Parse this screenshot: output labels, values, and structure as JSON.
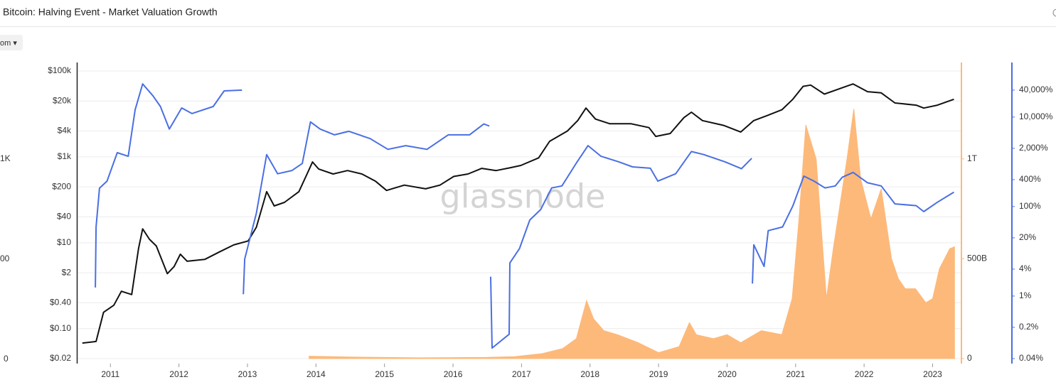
{
  "chart_data": {
    "type": "line",
    "title": "Bitcoin: Halving Event - Market Valuation Growth",
    "zoom_button": "om ▾",
    "offscreen_axis_labels": [
      "1K",
      "00",
      "0"
    ],
    "watermark": "glassnode",
    "xlim": [
      2010.53,
      2023.41
    ],
    "xticks": [
      2011,
      2012,
      2013,
      2014,
      2015,
      2016,
      2017,
      2018,
      2019,
      2020,
      2021,
      2022,
      2023
    ],
    "ylim": [
      0.02,
      100000
    ],
    "ylog": true,
    "yticks": [
      {
        "value": 0.02,
        "label": "$0.02"
      },
      {
        "value": 0.1,
        "label": "$0.10"
      },
      {
        "value": 0.4,
        "label": "$0.40"
      },
      {
        "value": 2,
        "label": "$2"
      },
      {
        "value": 10,
        "label": "$10"
      },
      {
        "value": 40,
        "label": "$40"
      },
      {
        "value": 200,
        "label": "$200"
      },
      {
        "value": 1000,
        "label": "$1k"
      },
      {
        "value": 4000,
        "label": "$4k"
      },
      {
        "value": 20000,
        "label": "$20k"
      },
      {
        "value": 100000,
        "label": "$100k"
      }
    ],
    "y2lim": [
      0,
      1440000000000
    ],
    "y2ticks": [
      0,
      {
        "value": 500000000000,
        "label": "500B"
      },
      {
        "value": 1000000000000,
        "label": "1T"
      }
    ],
    "y2color": "#fdb97a",
    "y3lim": [
      0.04,
      107000
    ],
    "y3log": true,
    "y3ticks": [
      {
        "value": 0.04,
        "label": "0.04%"
      },
      {
        "value": 0.2,
        "label": "0.2%"
      },
      {
        "value": 1,
        "label": "1%"
      },
      {
        "value": 4,
        "label": "4%"
      },
      {
        "value": 20,
        "label": "20%"
      },
      {
        "value": 100,
        "label": "100%"
      },
      {
        "value": 400,
        "label": "400%"
      },
      {
        "value": 2000,
        "label": "2,000%"
      },
      {
        "value": 10000,
        "label": "10,000%"
      },
      {
        "value": 40000,
        "label": "40,000%"
      }
    ],
    "y3color": "#4a6fe3",
    "grid": true,
    "series": [
      {
        "axis": "y2",
        "kind": "area",
        "color": "#fdb97a",
        "x": [
          2013.9,
          2014.5,
          2015.5,
          2016.5,
          2016.9,
          2017.3,
          2017.6,
          2017.8,
          2017.95,
          2018.05,
          2018.2,
          2018.4,
          2018.7,
          2019.0,
          2019.3,
          2019.45,
          2019.55,
          2019.8,
          2020.0,
          2020.2,
          2020.5,
          2020.8,
          2020.95,
          2021.05,
          2021.15,
          2021.3,
          2021.45,
          2021.55,
          2021.75,
          2021.85,
          2021.95,
          2022.1,
          2022.25,
          2022.4,
          2022.5,
          2022.6,
          2022.75,
          2022.9,
          2023.0,
          2023.1,
          2023.25,
          2023.32
        ],
        "values": [
          12000000000,
          8000000000,
          4000000000,
          6000000000,
          10000000000,
          25000000000,
          50000000000,
          100000000000,
          290000000000,
          200000000000,
          140000000000,
          120000000000,
          80000000000,
          30000000000,
          60000000000,
          180000000000,
          120000000000,
          100000000000,
          120000000000,
          80000000000,
          140000000000,
          120000000000,
          300000000000,
          700000000000,
          1170000000000,
          1000000000000,
          300000000000,
          550000000000,
          1000000000000,
          1250000000000,
          900000000000,
          700000000000,
          850000000000,
          500000000000,
          400000000000,
          350000000000,
          350000000000,
          280000000000,
          300000000000,
          450000000000,
          550000000000,
          560000000000
        ]
      },
      {
        "axis": "y",
        "kind": "line",
        "color": "#111111",
        "x": [
          2010.59,
          2010.79,
          2010.9,
          2011.05,
          2011.16,
          2011.31,
          2011.41,
          2011.47,
          2011.57,
          2011.67,
          2011.83,
          2011.93,
          2012.02,
          2012.12,
          2012.38,
          2012.59,
          2012.8,
          2013.01,
          2013.13,
          2013.28,
          2013.39,
          2013.54,
          2013.75,
          2013.87,
          2013.95,
          2014.04,
          2014.25,
          2014.46,
          2014.67,
          2014.87,
          2015.03,
          2015.29,
          2015.6,
          2015.81,
          2016.01,
          2016.22,
          2016.42,
          2016.63,
          2016.84,
          2016.99,
          2017.25,
          2017.41,
          2017.67,
          2017.82,
          2017.94,
          2018.08,
          2018.29,
          2018.6,
          2018.86,
          2018.96,
          2019.17,
          2019.37,
          2019.48,
          2019.64,
          2019.95,
          2020.2,
          2020.39,
          2020.59,
          2020.8,
          2020.96,
          2021.11,
          2021.22,
          2021.42,
          2021.74,
          2021.84,
          2022.05,
          2022.25,
          2022.45,
          2022.76,
          2022.87,
          2023.07,
          2023.31
        ],
        "values": [
          0.046,
          0.05,
          0.24,
          0.35,
          0.74,
          0.62,
          7.3,
          21,
          12,
          8.4,
          1.9,
          2.8,
          5.4,
          3.7,
          4.1,
          6.1,
          8.9,
          11,
          23,
          155,
          72,
          87,
          155,
          400,
          760,
          520,
          400,
          480,
          400,
          270,
          165,
          220,
          180,
          220,
          350,
          400,
          540,
          480,
          560,
          630,
          950,
          2300,
          4000,
          7000,
          13700,
          7600,
          5900,
          5900,
          4800,
          3000,
          3500,
          8200,
          11000,
          7000,
          5400,
          3800,
          7000,
          9200,
          12500,
          22000,
          44000,
          47000,
          29000,
          44000,
          50000,
          33000,
          31000,
          18000,
          16000,
          13700,
          16000,
          22000
        ]
      },
      {
        "axis": "y3",
        "kind": "line",
        "color": "#4a6fe3",
        "x": [
          2010.78,
          2010.79,
          2010.84,
          2010.95,
          2011.1,
          2011.26,
          2011.36,
          2011.47,
          2011.62,
          2011.73,
          2011.86,
          2012.04,
          2012.19,
          2012.5,
          2012.66,
          2012.92,
          2012.93,
          2012.94,
          2012.96,
          2013.13,
          2013.28,
          2013.44,
          2013.65,
          2013.8,
          2013.92,
          2014.06,
          2014.27,
          2014.48,
          2014.79,
          2015.05,
          2015.31,
          2015.62,
          2015.93,
          2016.24,
          2016.45,
          2016.53,
          2016.54,
          2016.55,
          2016.56,
          2016.57,
          2016.82,
          2016.83,
          2016.97,
          2017.12,
          2017.28,
          2017.44,
          2017.59,
          2017.8,
          2017.97,
          2018.16,
          2018.42,
          2018.62,
          2018.88,
          2018.99,
          2019.25,
          2019.48,
          2019.66,
          2019.97,
          2020.21,
          2020.36,
          2020.365,
          2020.37,
          2020.39,
          2020.54,
          2020.6,
          2020.81,
          2020.96,
          2021.12,
          2021.27,
          2021.43,
          2021.58,
          2021.68,
          2021.84,
          2022.05,
          2022.25,
          2022.45,
          2022.76,
          2022.87,
          2023.07,
          2023.31
        ],
        "values": [
          1.55,
          35,
          258,
          370,
          1600,
          1330,
          14500,
          55000,
          30000,
          17200,
          5400,
          16000,
          12000,
          17200,
          38500,
          40000,
          null,
          1.1,
          6.7,
          71,
          1450,
          540,
          640,
          920,
          7800,
          5400,
          4000,
          4800,
          3300,
          1900,
          2300,
          1900,
          4000,
          4000,
          7000,
          6300,
          null,
          2.7,
          0.43,
          0.069,
          0.14,
          5.5,
          11.5,
          50,
          86,
          260,
          290,
          940,
          2300,
          1330,
          1000,
          770,
          720,
          370,
          540,
          1700,
          1450,
          1000,
          700,
          1200,
          null,
          1.9,
          14,
          4.6,
          29,
          35,
          103,
          480,
          370,
          260,
          290,
          450,
          580,
          340,
          290,
          115,
          105,
          77,
          125,
          210
        ]
      }
    ]
  }
}
